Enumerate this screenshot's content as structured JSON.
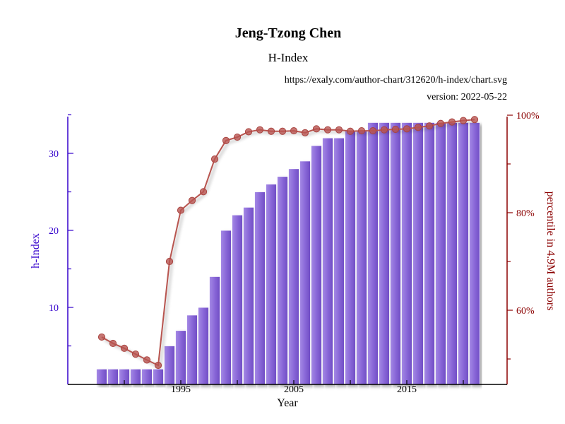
{
  "chart_data": {
    "type": "bar",
    "title": "Jeng-Tzong Chen",
    "subtitle": "H-Index",
    "source": "https://exaly.com/author-chart/312620/h-index/chart.svg",
    "version": "version: 2022-05-22",
    "xlabel": "Year",
    "ylabel_left": "h-Index",
    "ylabel_right": "percentile in 4.9M authors",
    "x_ticks": [
      "1995",
      "2005",
      "2015"
    ],
    "y_left_ticks": [
      "10",
      "20",
      "30"
    ],
    "y_right_ticks": [
      "60%",
      "80%",
      "100%"
    ],
    "ylim_left": [
      0,
      35
    ],
    "ylim_right": [
      45,
      100
    ],
    "bar_color": "#8c6bd8",
    "line_color": "#b85450",
    "left_axis_color": "#3300cc",
    "right_axis_color": "#8b0000",
    "years": [
      1988,
      1989,
      1990,
      1991,
      1992,
      1993,
      1994,
      1995,
      1996,
      1997,
      1998,
      1999,
      2000,
      2001,
      2002,
      2003,
      2004,
      2005,
      2006,
      2007,
      2008,
      2009,
      2010,
      2011,
      2012,
      2013,
      2014,
      2015,
      2016,
      2017,
      2018,
      2019,
      2020,
      2021
    ],
    "series": [
      {
        "name": "h-Index",
        "type": "bar",
        "axis": "left",
        "values": [
          2,
          2,
          2,
          2,
          2,
          2,
          5,
          7,
          9,
          10,
          14,
          20,
          22,
          23,
          25,
          26,
          27,
          28,
          29,
          31,
          32,
          32,
          33,
          33,
          34,
          34,
          34,
          34,
          34,
          34,
          34,
          34,
          34,
          34
        ]
      },
      {
        "name": "percentile",
        "type": "line",
        "axis": "right",
        "values": [
          54.5,
          53.2,
          52.2,
          51.0,
          49.8,
          48.7,
          70.0,
          80.5,
          82.5,
          84.3,
          91.0,
          94.8,
          95.5,
          96.6,
          97.0,
          96.7,
          96.7,
          96.8,
          96.4,
          97.2,
          97.0,
          97.0,
          96.7,
          96.8,
          96.8,
          97.0,
          97.1,
          97.2,
          97.5,
          97.8,
          98.3,
          98.6,
          98.9,
          99.1
        ]
      }
    ]
  }
}
